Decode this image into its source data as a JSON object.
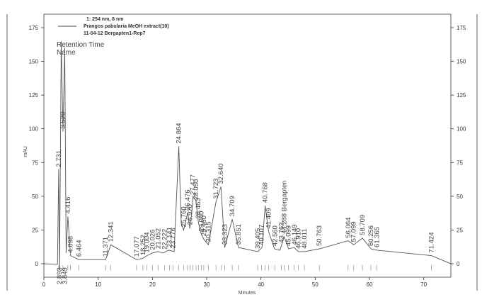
{
  "legend": {
    "header": "1: 254 nm, 8 nm",
    "series_name": "Prangos pabularia MeOH extract(10)",
    "run": "11-04-12 Bergapten1-Rep7"
  },
  "overlay": {
    "line1": "Retention Time",
    "line2": "Name"
  },
  "chart_data": {
    "type": "line",
    "xlabel": "Minutes",
    "ylabel": "mAU",
    "xlim": [
      0,
      75
    ],
    "ylim": [
      -10,
      185
    ],
    "x_ticks": [
      0,
      10,
      20,
      30,
      40,
      50,
      60,
      70
    ],
    "y_ticks": [
      0,
      25,
      50,
      75,
      100,
      125,
      150,
      175
    ],
    "grid": false,
    "series": [
      {
        "values": [
          [
            0,
            0
          ],
          [
            2.5,
            -0.5
          ],
          [
            2.73,
            70
          ],
          [
            2.893,
            -5
          ],
          [
            3.2,
            165
          ],
          [
            3.52,
            98
          ],
          [
            3.85,
            160
          ],
          [
            4.1,
            8
          ],
          [
            4.416,
            35
          ],
          [
            4.898,
            6
          ],
          [
            6.464,
            3
          ],
          [
            11.371,
            3
          ],
          [
            12.341,
            14
          ],
          [
            17.077,
            3
          ],
          [
            18.2,
            4
          ],
          [
            19.0,
            6
          ],
          [
            20.0,
            8
          ],
          [
            21.0,
            9
          ],
          [
            22.0,
            8
          ],
          [
            23.0,
            10
          ],
          [
            24.0,
            9
          ],
          [
            24.864,
            87
          ],
          [
            25.3,
            30
          ],
          [
            25.76,
            25
          ],
          [
            26.5,
            38
          ],
          [
            26.9,
            26
          ],
          [
            27.3,
            40
          ],
          [
            27.5,
            50
          ],
          [
            28.0,
            47
          ],
          [
            28.5,
            30
          ],
          [
            29.0,
            22
          ],
          [
            29.5,
            18
          ],
          [
            30.315,
            14
          ],
          [
            31.723,
            46
          ],
          [
            32.64,
            57
          ],
          [
            33.323,
            12
          ],
          [
            34.709,
            33
          ],
          [
            35.851,
            12
          ],
          [
            39.4,
            9
          ],
          [
            40.2,
            12
          ],
          [
            40.768,
            43
          ],
          [
            41.4,
            24
          ],
          [
            42.5,
            11
          ],
          [
            43.5,
            10
          ],
          [
            44.288,
            20
          ],
          [
            45.1,
            11
          ],
          [
            46.1,
            12
          ],
          [
            46.9,
            9
          ],
          [
            48.011,
            9
          ],
          [
            50.763,
            11
          ],
          [
            56.064,
            17
          ],
          [
            57.099,
            14
          ],
          [
            58.709,
            19
          ],
          [
            60.256,
            11
          ],
          [
            61.365,
            10
          ],
          [
            71.424,
            6
          ],
          [
            75,
            0
          ]
        ]
      }
    ],
    "peak_labels": [
      {
        "rt": 2.731,
        "text": "2.731"
      },
      {
        "rt": 3.52,
        "text": "3.520"
      },
      {
        "rt": 4.416,
        "text": "4.416"
      },
      {
        "rt": 4.898,
        "text": "4.898"
      },
      {
        "rt": 6.464,
        "text": "6.464"
      },
      {
        "rt": 11.371,
        "text": "11.371"
      },
      {
        "rt": 12.341,
        "text": "12.341"
      },
      {
        "rt": 17.077,
        "text": "17.077"
      },
      {
        "rt": 18.252,
        "text": "18.252"
      },
      {
        "rt": 19.004,
        "text": "19.004"
      },
      {
        "rt": 20.026,
        "text": "20.026"
      },
      {
        "rt": 21.052,
        "text": "21.052"
      },
      {
        "rt": 22.222,
        "text": "22.222"
      },
      {
        "rt": 23.141,
        "text": "23.141"
      },
      {
        "rt": 23.776,
        "text": "23.776"
      },
      {
        "rt": 24.864,
        "text": "24.864"
      },
      {
        "rt": 25.76,
        "text": "25.760"
      },
      {
        "rt": 26.476,
        "text": "26.476"
      },
      {
        "rt": 26.92,
        "text": "26.920"
      },
      {
        "rt": 27.477,
        "text": "27.477"
      },
      {
        "rt": 28.05,
        "text": "28.050"
      },
      {
        "rt": 28.463,
        "text": "28.463"
      },
      {
        "rt": 29.04,
        "text": "29.040"
      },
      {
        "rt": 29.46,
        "text": "29.460"
      },
      {
        "rt": 30.315,
        "text": "30.315"
      },
      {
        "rt": 31.723,
        "text": "31.723"
      },
      {
        "rt": 32.64,
        "text": "32.640"
      },
      {
        "rt": 33.323,
        "text": "33.323"
      },
      {
        "rt": 34.709,
        "text": "34.709"
      },
      {
        "rt": 35.851,
        "text": "35.851"
      },
      {
        "rt": 39.405,
        "text": "39.405"
      },
      {
        "rt": 40.107,
        "text": "40.107"
      },
      {
        "rt": 40.768,
        "text": "40.768"
      },
      {
        "rt": 41.409,
        "text": "41.409"
      },
      {
        "rt": 42.56,
        "text": "42.560"
      },
      {
        "rt": 43.762,
        "text": "43.762"
      },
      {
        "rt": 44.288,
        "text": "44.288 Bergapten"
      },
      {
        "rt": 45.099,
        "text": "45.099"
      },
      {
        "rt": 46.149,
        "text": "46.149"
      },
      {
        "rt": 46.91,
        "text": "46.910"
      },
      {
        "rt": 48.011,
        "text": "48.011"
      },
      {
        "rt": 50.763,
        "text": "50.763"
      },
      {
        "rt": 56.064,
        "text": "56.064"
      },
      {
        "rt": 57.099,
        "text": "57.099"
      },
      {
        "rt": 58.709,
        "text": "58.709"
      },
      {
        "rt": 60.256,
        "text": "60.256"
      },
      {
        "rt": 61.365,
        "text": "61.365"
      },
      {
        "rt": 71.424,
        "text": "71.424"
      }
    ],
    "below_labels": [
      {
        "rt": 2.893,
        "text": "2.893"
      },
      {
        "rt": 3.849,
        "text": "3.849"
      }
    ]
  }
}
